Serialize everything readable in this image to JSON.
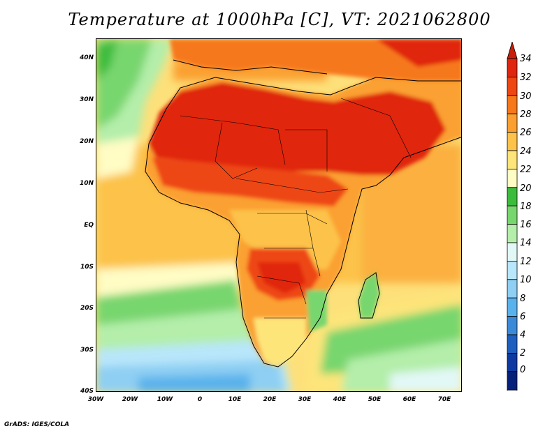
{
  "title": "Temperature at 1000hPa [C], VT: 2021062800",
  "credit": "GrADS: IGES/COLA",
  "lat_labels": [
    "40N",
    "30N",
    "20N",
    "10N",
    "EQ",
    "10S",
    "20S",
    "30S",
    "40S"
  ],
  "lon_labels": [
    "30W",
    "20W",
    "10W",
    "0",
    "10E",
    "20E",
    "30E",
    "40E",
    "50E",
    "60E",
    "70E"
  ],
  "colorbar": {
    "labels": [
      "34",
      "32",
      "30",
      "28",
      "26",
      "24",
      "22",
      "20",
      "18",
      "16",
      "14",
      "12",
      "10",
      "8",
      "6",
      "4",
      "2",
      "0"
    ],
    "colors": [
      "#e0260f",
      "#ee4712",
      "#f6781a",
      "#fba030",
      "#fcc24a",
      "#fde57a",
      "#fffcc4",
      "#3cbc3c",
      "#78d66e",
      "#b4eeaa",
      "#e2f8f6",
      "#b8e6fa",
      "#8ecff3",
      "#5ab2ec",
      "#3a8ad8",
      "#1e5ebe",
      "#0c3aa0",
      "#06217a"
    ],
    "over_color": "#c81e0a",
    "under_color": "#e6e6ff"
  }
}
